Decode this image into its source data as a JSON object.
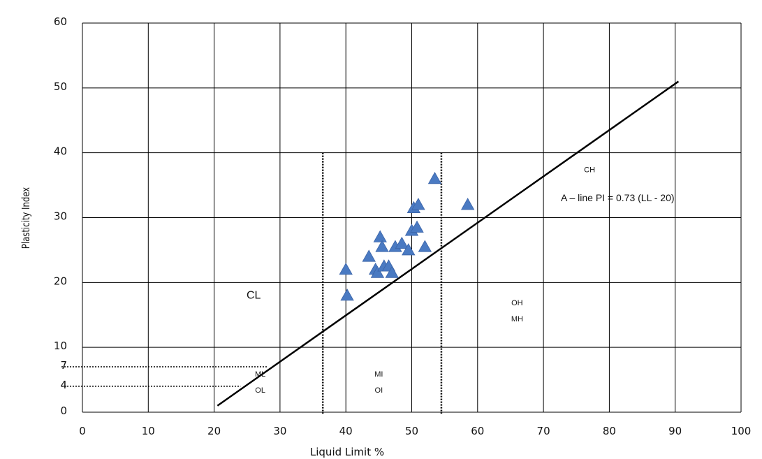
{
  "chart_data": {
    "type": "scatter",
    "xlabel": "Liquid Limit %",
    "ylabel": "Plasticity Index",
    "xlim": [
      0,
      100
    ],
    "ylim": [
      0,
      60
    ],
    "x_ticks": [
      "0",
      "10",
      "20",
      "30",
      "40",
      "50",
      "60",
      "70",
      "80",
      "90",
      "100"
    ],
    "y_ticks": [
      {
        "label": "0",
        "value": 0
      },
      {
        "label": "4",
        "value": 4
      },
      {
        "label": "7",
        "value": 7
      },
      {
        "label": "10",
        "value": 10
      },
      {
        "label": "20",
        "value": 20
      },
      {
        "label": "30",
        "value": 30
      },
      {
        "label": "40",
        "value": 40
      },
      {
        "label": "50",
        "value": 50
      },
      {
        "label": "60",
        "value": 60
      }
    ],
    "grid": true,
    "marker": "triangle",
    "marker_color": "#4a7ac2",
    "points": [
      {
        "x": 40,
        "y": 22
      },
      {
        "x": 40.2,
        "y": 18
      },
      {
        "x": 43.5,
        "y": 24
      },
      {
        "x": 44.5,
        "y": 22
      },
      {
        "x": 44.8,
        "y": 21.5
      },
      {
        "x": 45.2,
        "y": 27
      },
      {
        "x": 45.5,
        "y": 25.5
      },
      {
        "x": 45.8,
        "y": 22.5
      },
      {
        "x": 46.5,
        "y": 22.5
      },
      {
        "x": 47,
        "y": 21.5
      },
      {
        "x": 47.5,
        "y": 25.5
      },
      {
        "x": 48.5,
        "y": 26
      },
      {
        "x": 49.5,
        "y": 25
      },
      {
        "x": 50,
        "y": 28
      },
      {
        "x": 50.3,
        "y": 31.5
      },
      {
        "x": 50.8,
        "y": 28.5
      },
      {
        "x": 51,
        "y": 32
      },
      {
        "x": 52,
        "y": 25.5
      },
      {
        "x": 53.5,
        "y": 36
      },
      {
        "x": 58.5,
        "y": 32
      }
    ],
    "a_line": {
      "label": "A – line PI = 0.73 (LL - 20)",
      "x1": 20.5,
      "y1": 1,
      "x2": 90.5,
      "y2": 51,
      "color": "#000000"
    },
    "vertical_dotted_lines": [
      {
        "x": 36.5,
        "y_top": 40
      },
      {
        "x": 54.5,
        "y_top": 40
      }
    ],
    "horizontal_dotted_lines": [
      {
        "y": 7,
        "x_end": 28
      },
      {
        "y": 4,
        "x_end": 24
      }
    ],
    "annotations": [
      {
        "text": "CL",
        "x": 26,
        "y": 17.5,
        "size": "big"
      },
      {
        "text": "ML",
        "x": 27,
        "y": 5.5,
        "size": "small"
      },
      {
        "text": "OL",
        "x": 27,
        "y": 3,
        "size": "small"
      },
      {
        "text": "MI",
        "x": 45,
        "y": 5.5,
        "size": "small"
      },
      {
        "text": "OI",
        "x": 45,
        "y": 3,
        "size": "small"
      },
      {
        "text": "OH",
        "x": 66,
        "y": 16.5,
        "size": "small"
      },
      {
        "text": "MH",
        "x": 66,
        "y": 14,
        "size": "small"
      },
      {
        "text": "CH",
        "x": 77,
        "y": 37,
        "size": "small"
      }
    ]
  }
}
